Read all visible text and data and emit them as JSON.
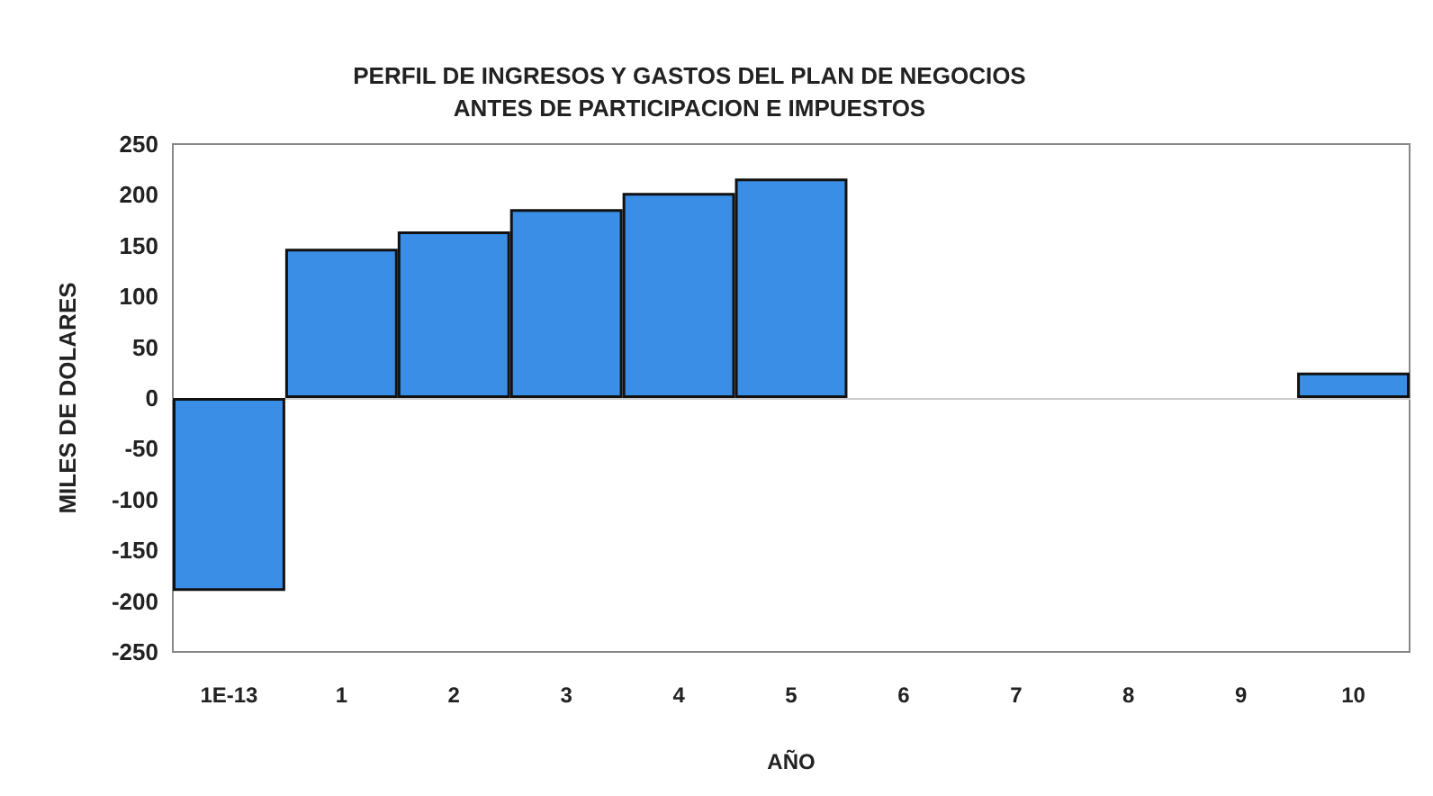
{
  "chart_data": {
    "type": "bar",
    "title": "PERFIL DE INGRESOS Y GASTOS DEL PLAN DE NEGOCIOS\nANTES DE PARTICIPACION E IMPUESTOS",
    "xlabel": "AÑO",
    "ylabel": "MILES DE DOLARES",
    "categories": [
      "1E-13",
      "1",
      "2",
      "3",
      "4",
      "5",
      "6",
      "7",
      "8",
      "9",
      "10"
    ],
    "values": [
      -190,
      147,
      164,
      186,
      202,
      216,
      0,
      0,
      0,
      0,
      25
    ],
    "color": "#3a8ee6",
    "ylim": [
      -250,
      250
    ],
    "yticks": [
      -250,
      -200,
      -150,
      -100,
      -50,
      0,
      50,
      100,
      150,
      200,
      250
    ]
  }
}
